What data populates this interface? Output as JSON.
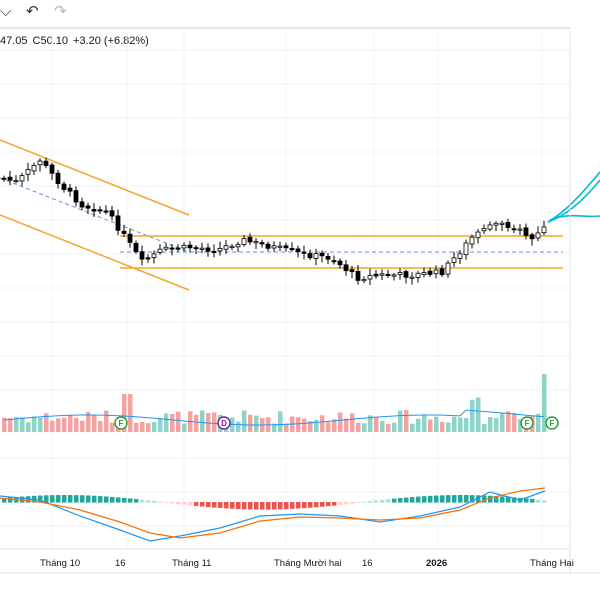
{
  "toolbar": {
    "icons": [
      "chevron-down-icon",
      "undo-icon",
      "redo-icon"
    ],
    "chevron_glyph": "⌵",
    "undo_glyph": "↶",
    "redo_glyph": "↷"
  },
  "legend": {
    "partial_value": "47.05",
    "close_label": "C50.10",
    "change": "+3.20 (+6.82%)"
  },
  "colors": {
    "up": "#26a69a",
    "down": "#ef5350",
    "channel": "#f5a623",
    "macd": "#2196f3",
    "signal": "#ff6d00",
    "projection": "#00bcd4"
  },
  "xaxis": {
    "labels": [
      "Tháng 10",
      "16",
      "Tháng 11",
      "Tháng Mười hai",
      "16",
      "2026",
      "Tháng Hai"
    ]
  },
  "markers": [
    {
      "letter": "F",
      "kind": "green"
    },
    {
      "letter": "D",
      "kind": "purple"
    },
    {
      "letter": "F",
      "kind": "green"
    },
    {
      "letter": "F",
      "kind": "green"
    }
  ]
}
